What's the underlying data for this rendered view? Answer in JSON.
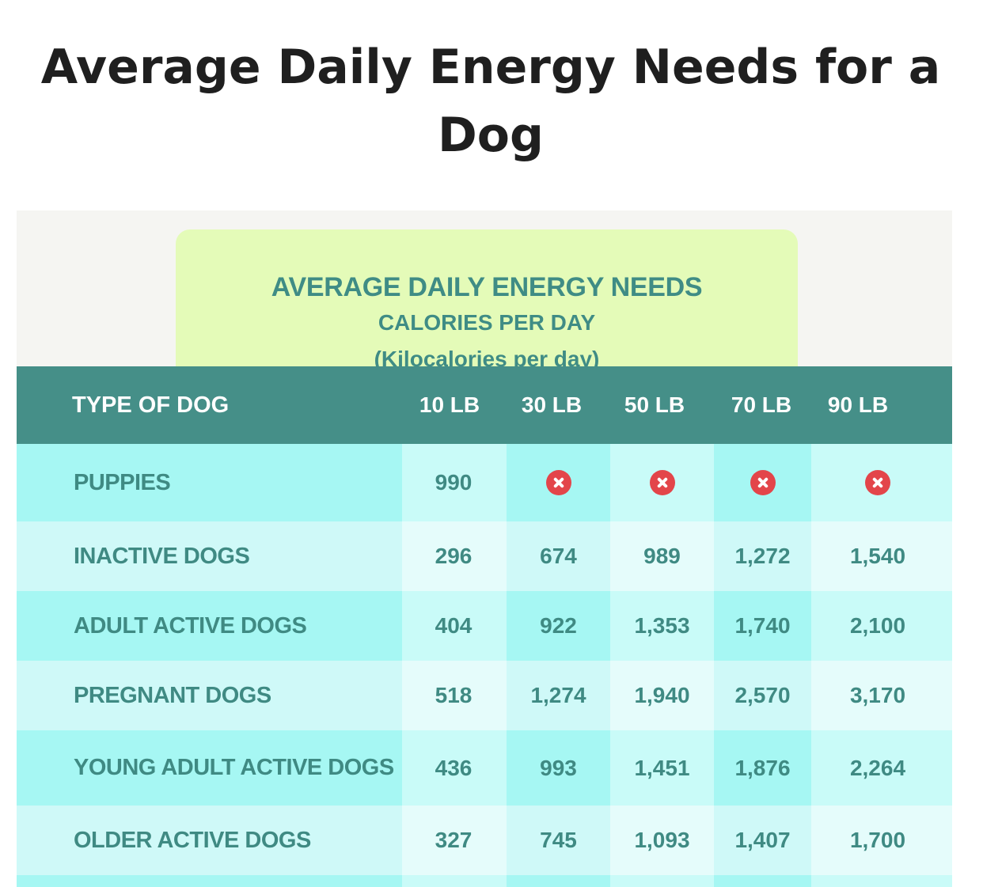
{
  "page": {
    "title": "Average Daily Energy Needs for a Dog"
  },
  "banner": {
    "line1": "AVERAGE DAILY ENERGY NEEDS",
    "line2": "CALORIES PER DAY",
    "line3": "(Kilocalories per day)"
  },
  "table": {
    "headers": [
      "TYPE OF DOG",
      "10 LB",
      "30 LB",
      "50 LB",
      "70 LB",
      "90 LB"
    ],
    "rows": [
      {
        "label": "PUPPIES",
        "values": [
          "990",
          null,
          null,
          null,
          null
        ]
      },
      {
        "label": "INACTIVE DOGS",
        "values": [
          "296",
          "674",
          "989",
          "1,272",
          "1,540"
        ]
      },
      {
        "label": "ADULT ACTIVE DOGS",
        "values": [
          "404",
          "922",
          "1,353",
          "1,740",
          "2,100"
        ]
      },
      {
        "label": "PREGNANT DOGS",
        "values": [
          "518",
          "1,274",
          "1,940",
          "2,570",
          "3,170"
        ]
      },
      {
        "label": "YOUNG ADULT ACTIVE DOGS",
        "values": [
          "436",
          "993",
          "1,451",
          "1,876",
          "2,264"
        ]
      },
      {
        "label": "OLDER ACTIVE DOGS",
        "values": [
          "327",
          "745",
          "1,093",
          "1,407",
          "1,700"
        ]
      }
    ],
    "not_applicable_icon": "close-circle-icon"
  },
  "colors": {
    "header_bg": "#458f88",
    "banner_bg": "#e4fbb8",
    "text_teal": "#3f8a83",
    "icon_red": "#e3454a"
  }
}
